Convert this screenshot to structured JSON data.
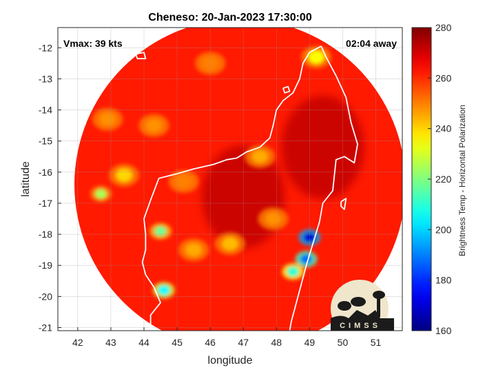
{
  "chart_data": {
    "type": "heatmap",
    "title": "Cheneso: 20-Jan-2023 17:30:00",
    "xlabel": "longitude",
    "ylabel": "latitude",
    "xlim": [
      41.4,
      51.8
    ],
    "ylim": [
      -21.1,
      -11.35
    ],
    "xticks": [
      42,
      43,
      44,
      45,
      46,
      47,
      48,
      49,
      50,
      51
    ],
    "yticks": [
      -12,
      -13,
      -14,
      -15,
      -16,
      -17,
      -18,
      -19,
      -20,
      -21
    ],
    "grid": true,
    "colorbar": {
      "label": "Brightness Temp - Horizontal Polarization",
      "range": [
        160,
        280
      ],
      "ticks": [
        160,
        180,
        200,
        220,
        240,
        260,
        280
      ],
      "colormap": "jet"
    },
    "annotations": {
      "vmax": "Vmax: 39 kts",
      "time_away": "02:04 away"
    },
    "swath_center": [
      46.9,
      -16.4
    ],
    "swath_radius_deg": 5.0,
    "background_temp": 262,
    "features": [
      {
        "lon": 49.0,
        "lat": -18.1,
        "temp": 170
      },
      {
        "lon": 48.9,
        "lat": -18.8,
        "temp": 188
      },
      {
        "lon": 48.5,
        "lat": -19.2,
        "temp": 210
      },
      {
        "lon": 44.6,
        "lat": -19.8,
        "temp": 205
      },
      {
        "lon": 44.5,
        "lat": -17.9,
        "temp": 218
      },
      {
        "lon": 42.7,
        "lat": -16.7,
        "temp": 225
      },
      {
        "lon": 43.4,
        "lat": -16.1,
        "temp": 240
      },
      {
        "lon": 49.2,
        "lat": -12.3,
        "temp": 235
      },
      {
        "lon": 47.5,
        "lat": -15.5,
        "temp": 245
      },
      {
        "lon": 45.5,
        "lat": -18.5,
        "temp": 245
      },
      {
        "lon": 46.6,
        "lat": -18.3,
        "temp": 243
      },
      {
        "lon": 47.9,
        "lat": -17.5,
        "temp": 248
      },
      {
        "lon": 44.3,
        "lat": -14.5,
        "temp": 248
      },
      {
        "lon": 46.0,
        "lat": -12.5,
        "temp": 250
      },
      {
        "lon": 45.2,
        "lat": -16.3,
        "temp": 250
      },
      {
        "lon": 42.9,
        "lat": -14.3,
        "temp": 248
      }
    ],
    "cold_regions": [
      {
        "lon": 49.4,
        "lat": -15.2,
        "temp": 272
      },
      {
        "lon": 47.0,
        "lat": -16.8,
        "temp": 272
      }
    ],
    "coastline_mainland": [
      [
        49.35,
        -11.95
      ],
      [
        49.5,
        -12.3
      ],
      [
        49.8,
        -12.9
      ],
      [
        50.1,
        -13.6
      ],
      [
        50.25,
        -14.4
      ],
      [
        50.45,
        -15.1
      ],
      [
        50.35,
        -15.7
      ],
      [
        50.05,
        -15.5
      ],
      [
        49.8,
        -15.6
      ],
      [
        49.75,
        -16.1
      ],
      [
        49.7,
        -16.6
      ],
      [
        49.4,
        -17.0
      ],
      [
        49.3,
        -17.6
      ],
      [
        49.1,
        -18.3
      ],
      [
        48.9,
        -19.0
      ],
      [
        48.75,
        -19.6
      ],
      [
        48.6,
        -20.2
      ],
      [
        48.45,
        -20.8
      ],
      [
        48.4,
        -21.1
      ]
    ],
    "coastline_west": [
      [
        44.2,
        -21.1
      ],
      [
        44.2,
        -20.6
      ],
      [
        44.5,
        -20.2
      ],
      [
        44.3,
        -19.7
      ],
      [
        44.05,
        -19.3
      ],
      [
        43.95,
        -18.9
      ],
      [
        44.05,
        -18.5
      ],
      [
        44.05,
        -18.0
      ],
      [
        44.0,
        -17.5
      ],
      [
        44.2,
        -16.9
      ],
      [
        44.45,
        -16.2
      ],
      [
        45.0,
        -16.05
      ],
      [
        45.5,
        -15.9
      ],
      [
        46.1,
        -15.75
      ],
      [
        46.5,
        -15.6
      ],
      [
        46.8,
        -15.55
      ],
      [
        47.1,
        -15.35
      ],
      [
        47.5,
        -15.2
      ],
      [
        47.8,
        -14.9
      ],
      [
        47.9,
        -14.5
      ],
      [
        48.0,
        -14.0
      ],
      [
        48.2,
        -13.7
      ],
      [
        48.5,
        -13.45
      ],
      [
        48.7,
        -13.0
      ],
      [
        48.8,
        -12.5
      ],
      [
        49.0,
        -12.15
      ],
      [
        49.35,
        -11.95
      ]
    ],
    "islands": [
      [
        [
          43.2,
          -12.3
        ],
        [
          43.4,
          -12.25
        ],
        [
          43.45,
          -12.4
        ],
        [
          43.25,
          -12.42
        ],
        [
          43.2,
          -12.3
        ]
      ],
      [
        [
          43.75,
          -12.2
        ],
        [
          44.0,
          -12.15
        ],
        [
          44.05,
          -12.35
        ],
        [
          43.8,
          -12.35
        ],
        [
          43.75,
          -12.2
        ]
      ],
      [
        [
          48.2,
          -13.3
        ],
        [
          48.35,
          -13.25
        ],
        [
          48.4,
          -13.4
        ],
        [
          48.25,
          -13.45
        ],
        [
          48.2,
          -13.3
        ]
      ],
      [
        [
          49.95,
          -16.95
        ],
        [
          50.1,
          -16.85
        ],
        [
          50.05,
          -17.2
        ],
        [
          49.95,
          -17.1
        ],
        [
          49.95,
          -16.95
        ]
      ]
    ],
    "logo_text": "CIMSS"
  }
}
